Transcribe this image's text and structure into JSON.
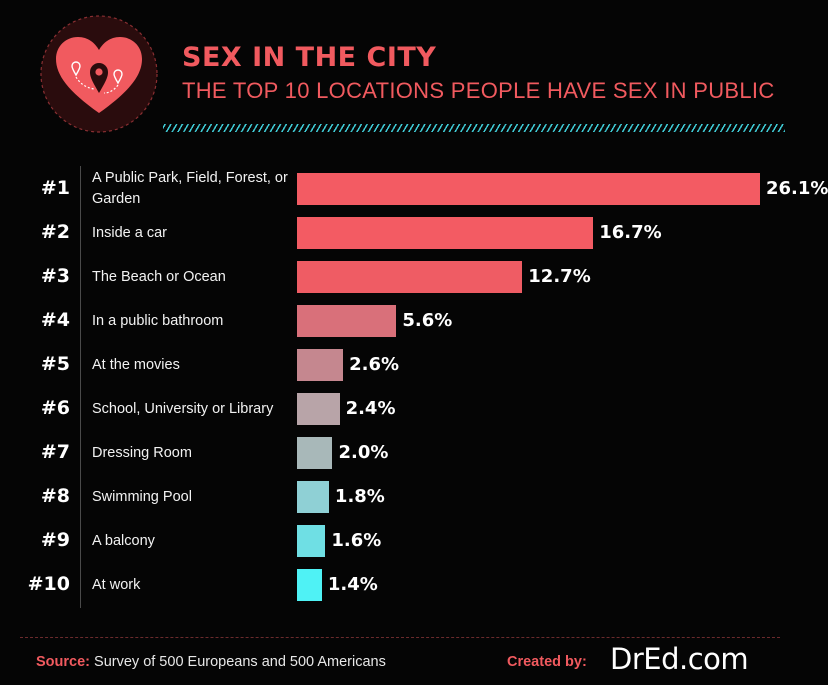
{
  "header": {
    "title": "SEX IN THE CITY",
    "subtitle": "THE TOP 10 LOCATIONS PEOPLE HAVE SEX IN PUBLIC"
  },
  "colors": {
    "accent": "#f15a5f",
    "hatch": "#3fc9d3"
  },
  "icons": [
    "heart-icon",
    "map-pin-icon"
  ],
  "chart_data": {
    "type": "bar",
    "orientation": "horizontal",
    "title": "SEX IN THE CITY",
    "subtitle": "THE TOP 10 LOCATIONS PEOPLE HAVE SEX IN PUBLIC",
    "ranks": [
      "#1",
      "#2",
      "#3",
      "#4",
      "#5",
      "#6",
      "#7",
      "#8",
      "#9",
      "#10"
    ],
    "categories": [
      "A Public Park, Field, Forest, or Garden",
      "Inside a car",
      "The Beach or Ocean",
      "In a public bathroom",
      "At the movies",
      "School, University or Library",
      "Dressing Room",
      "Swimming Pool",
      "A balcony",
      "At work"
    ],
    "values": [
      26.1,
      16.7,
      12.7,
      5.6,
      2.6,
      2.4,
      2.0,
      1.8,
      1.6,
      1.4
    ],
    "value_labels": [
      "26.1%",
      "16.7%",
      "12.7%",
      "5.6%",
      "2.6%",
      "2.4%",
      "2.0%",
      "1.8%",
      "1.6%",
      "1.4%"
    ],
    "bar_colors": [
      "#f35b63",
      "#f35b63",
      "#ef5c64",
      "#d9707a",
      "#c5878f",
      "#b8a4a8",
      "#a8b8b9",
      "#8fd0d5",
      "#6fdfe4",
      "#4ff2f5"
    ],
    "xlim": [
      0,
      26.1
    ],
    "grid": false,
    "legend": "none"
  },
  "footer": {
    "source_label": "Source:",
    "source_text": "Survey of 500 Europeans and 500 Americans",
    "created_label": "Created by:",
    "brand": "DrEd.com"
  }
}
